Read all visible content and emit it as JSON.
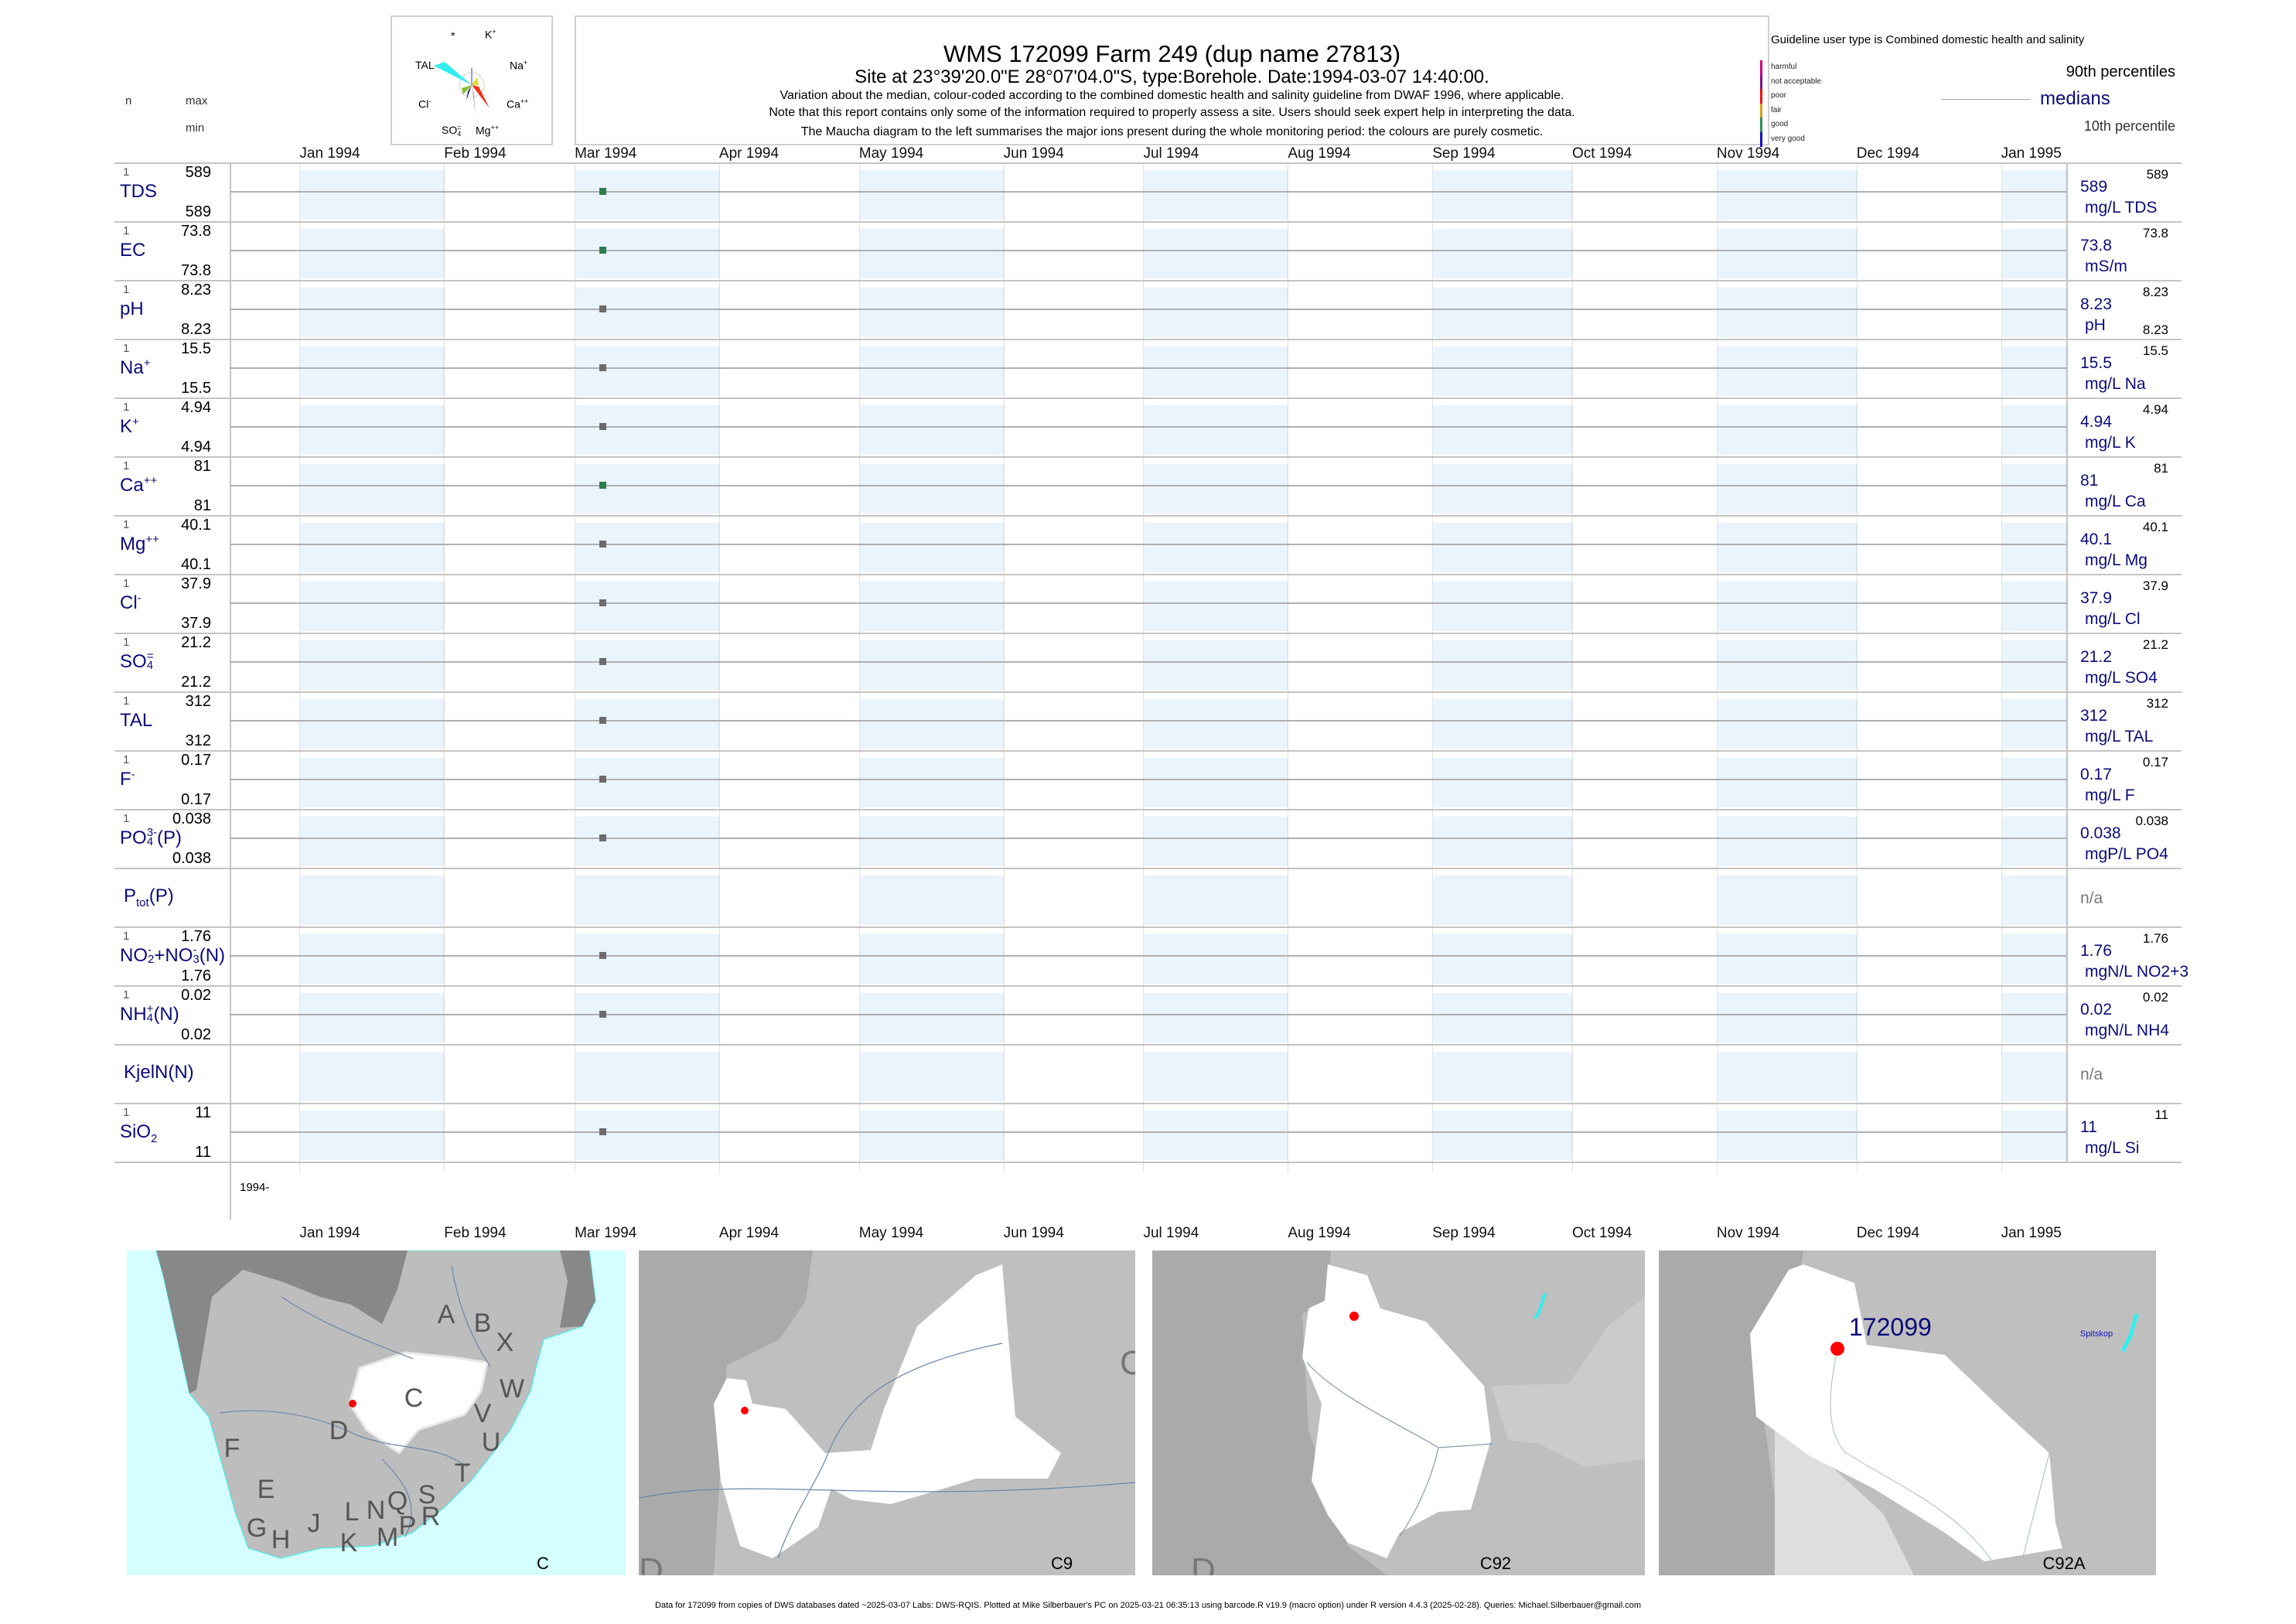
{
  "header": {
    "title": "WMS 172099  Farm 249 (dup name 27813)",
    "site": "Site at 23°39'20.0\"E 28°07'04.0\"S, type:Borehole. Date:1994-03-07 14:40:00.",
    "notes": [
      "Variation about the median,  colour-coded according to the combined domestic health and salinity guideline from DWAF 1996, where applicable.",
      "Note that this report contains only some of the information required to properly assess a site. Users should seek expert help in interpreting the data.",
      "The Maucha diagram to the left summarises the major ions present during the whole monitoring period: the colours are purely cosmetic."
    ]
  },
  "maucha": {
    "star": "*",
    "labels": {
      "k": "K",
      "k_sup": "+",
      "na": "Na",
      "na_sup": "+",
      "ca": "Ca",
      "ca_sup": "++",
      "mg": "Mg",
      "mg_sup": "++",
      "so4": "SO",
      "so4_sub": "4",
      "so4_sup": "=",
      "cl": "Cl",
      "cl_sup": "-",
      "tal": "TAL"
    },
    "colors": {
      "tal": "#33eeee",
      "ca": "#ee3311",
      "mg": "#aaaaaa",
      "cl": "#88bb33",
      "na": "#dddd22",
      "k": "#9999dd",
      "so4": "#222266"
    }
  },
  "col_headers": {
    "n": "n",
    "max": "max",
    "min": "min"
  },
  "legend": {
    "guideline": "Guideline user type is Combined domestic health and salinity",
    "classes": [
      {
        "label": "harmful",
        "color": "#cc0077"
      },
      {
        "label": "not acceptable",
        "color": "#881188"
      },
      {
        "label": "poor",
        "color": "#ee1111"
      },
      {
        "label": "fair",
        "color": "#d4a017"
      },
      {
        "label": "good",
        "color": "#2e8b57"
      },
      {
        "label": "very good",
        "color": "#1111cc"
      }
    ],
    "p90": "90th percentiles",
    "medians": "medians",
    "p10": "10th percentile"
  },
  "chart_data": {
    "type": "scatter",
    "title": "WMS 172099  Farm 249 (dup name 27813)",
    "x_domain": [
      "1993-12-17",
      "1995-01-15"
    ],
    "months": [
      {
        "label": "Jan 1994",
        "date": "1994-01-01",
        "shaded": true
      },
      {
        "label": "Feb 1994",
        "date": "1994-02-01",
        "shaded": false
      },
      {
        "label": "Mar 1994",
        "date": "1994-03-01",
        "shaded": true
      },
      {
        "label": "Apr 1994",
        "date": "1994-04-01",
        "shaded": false
      },
      {
        "label": "May 1994",
        "date": "1994-05-01",
        "shaded": true
      },
      {
        "label": "Jun 1994",
        "date": "1994-06-01",
        "shaded": false
      },
      {
        "label": "Jul 1994",
        "date": "1994-07-01",
        "shaded": true
      },
      {
        "label": "Aug 1994",
        "date": "1994-08-01",
        "shaded": false
      },
      {
        "label": "Sep 1994",
        "date": "1994-09-01",
        "shaded": true
      },
      {
        "label": "Oct 1994",
        "date": "1994-10-01",
        "shaded": false
      },
      {
        "label": "Nov 1994",
        "date": "1994-11-01",
        "shaded": true
      },
      {
        "label": "Dec 1994",
        "date": "1994-12-01",
        "shaded": false
      },
      {
        "label": "Jan 1995",
        "date": "1995-01-01",
        "shaded": true
      }
    ],
    "sample_date": "1994-03-07",
    "year_label": "1994-",
    "na_text": "n/a",
    "rows": [
      {
        "id": "tds",
        "label": [
          {
            "t": "TDS"
          }
        ],
        "n": "1",
        "max": "589",
        "min": "589",
        "median": "589",
        "unit": "mg/L TDS",
        "rmax": "589",
        "value": 589,
        "color": "#2e7d4f"
      },
      {
        "id": "ec",
        "label": [
          {
            "t": "EC"
          }
        ],
        "n": "1",
        "max": "73.8",
        "min": "73.8",
        "median": "73.8",
        "unit": "mS/m",
        "rmax": "73.8",
        "value": 73.8,
        "color": "#2e7d4f"
      },
      {
        "id": "ph",
        "label": [
          {
            "t": "pH"
          }
        ],
        "n": "1",
        "max": "8.23",
        "min": "8.23",
        "median": "8.23",
        "unit": "pH",
        "rmax": "8.23",
        "rmin": "8.23",
        "value": 8.23,
        "color": "#6b6b6b"
      },
      {
        "id": "na",
        "label": [
          {
            "t": "Na"
          },
          {
            "sup": "+"
          }
        ],
        "n": "1",
        "max": "15.5",
        "min": "15.5",
        "median": "15.5",
        "unit": "mg/L Na",
        "rmax": "15.5",
        "value": 15.5,
        "color": "#6b6b6b"
      },
      {
        "id": "k",
        "label": [
          {
            "t": "K"
          },
          {
            "sup": "+"
          }
        ],
        "n": "1",
        "max": "4.94",
        "min": "4.94",
        "median": "4.94",
        "unit": "mg/L K",
        "rmax": "4.94",
        "value": 4.94,
        "color": "#6b6b6b"
      },
      {
        "id": "ca",
        "label": [
          {
            "t": "Ca"
          },
          {
            "sup": "++"
          }
        ],
        "n": "1",
        "max": "81",
        "min": "81",
        "median": "81",
        "unit": "mg/L Ca",
        "rmax": "81",
        "value": 81,
        "color": "#2e7d4f"
      },
      {
        "id": "mg",
        "label": [
          {
            "t": "Mg"
          },
          {
            "sup": "++"
          }
        ],
        "n": "1",
        "max": "40.1",
        "min": "40.1",
        "median": "40.1",
        "unit": "mg/L Mg",
        "rmax": "40.1",
        "value": 40.1,
        "color": "#6b6b6b"
      },
      {
        "id": "cl",
        "label": [
          {
            "t": "Cl"
          },
          {
            "sup": "-"
          }
        ],
        "n": "1",
        "max": "37.9",
        "min": "37.9",
        "median": "37.9",
        "unit": "mg/L Cl",
        "rmax": "37.9",
        "value": 37.9,
        "color": "#6b6b6b"
      },
      {
        "id": "so4",
        "label": [
          {
            "t": "SO"
          },
          {
            "ss": [
              "=",
              "4"
            ]
          }
        ],
        "n": "1",
        "max": "21.2",
        "min": "21.2",
        "median": "21.2",
        "unit": "mg/L SO4",
        "rmax": "21.2",
        "value": 21.2,
        "color": "#6b6b6b"
      },
      {
        "id": "tal",
        "label": [
          {
            "t": "TAL"
          }
        ],
        "n": "1",
        "max": "312",
        "min": "312",
        "median": "312",
        "unit": "mg/L TAL",
        "rmax": "312",
        "value": 312,
        "color": "#6b6b6b"
      },
      {
        "id": "f",
        "label": [
          {
            "t": "F"
          },
          {
            "sup": "-"
          }
        ],
        "n": "1",
        "max": "0.17",
        "min": "0.17",
        "median": "0.17",
        "unit": "mg/L F",
        "rmax": "0.17",
        "value": 0.17,
        "color": "#6b6b6b"
      },
      {
        "id": "po4",
        "label": [
          {
            "t": "PO"
          },
          {
            "ss": [
              "3-",
              "4"
            ]
          },
          {
            "t": "(P)"
          }
        ],
        "n": "1",
        "max": "0.038",
        "min": "0.038",
        "median": "0.038",
        "unit": "mgP/L PO4",
        "rmax": "0.038",
        "value": 0.038,
        "color": "#6b6b6b"
      },
      {
        "id": "ptot",
        "label": [
          {
            "t": "P"
          },
          {
            "sub": "tot"
          },
          {
            "t": "(P)"
          }
        ],
        "empty": true
      },
      {
        "id": "no23",
        "label": [
          {
            "t": "NO"
          },
          {
            "ss": [
              "-",
              "2"
            ]
          },
          {
            "t": "+NO"
          },
          {
            "ss": [
              "-",
              "3"
            ]
          },
          {
            "t": "(N)"
          }
        ],
        "n": "1",
        "max": "1.76",
        "min": "1.76",
        "median": "1.76",
        "unit": "mgN/L NO2+3",
        "rmax": "1.76",
        "value": 1.76,
        "color": "#6b6b6b"
      },
      {
        "id": "nh4",
        "label": [
          {
            "t": "NH"
          },
          {
            "ss": [
              "+",
              "4"
            ]
          },
          {
            "t": "(N)"
          }
        ],
        "n": "1",
        "max": "0.02",
        "min": "0.02",
        "median": "0.02",
        "unit": "mgN/L NH4",
        "rmax": "0.02",
        "value": 0.02,
        "color": "#6b6b6b"
      },
      {
        "id": "kjel",
        "label": [
          {
            "t": "KjelN(N)"
          }
        ],
        "empty": true
      },
      {
        "id": "sio2",
        "label": [
          {
            "t": "SiO"
          },
          {
            "sub": "2"
          }
        ],
        "n": "1",
        "max": "11",
        "min": "11",
        "median": "11",
        "unit": "mg/L Si",
        "rmax": "11",
        "value": 11,
        "color": "#6b6b6b"
      }
    ]
  },
  "maps": {
    "panel1": {
      "caption": "C",
      "letters": [
        "A",
        "B",
        "X",
        "W",
        "C",
        "V",
        "D",
        "U",
        "F",
        "T",
        "E",
        "S",
        "Q",
        "N",
        "L",
        "R",
        "J",
        "P",
        "G",
        "H",
        "K",
        "M"
      ]
    },
    "panel2": {
      "caption": "C9",
      "edge_left": "D",
      "edge_right": "C"
    },
    "panel3": {
      "caption": "C92",
      "edge_left": "D"
    },
    "panel4": {
      "caption": "C92A",
      "site_label": "172099",
      "place": "Spitskop"
    }
  },
  "footer": "Data for 172099 from copies of DWS databases dated ~2025-03-07 Labs: DWS-RQIS. Plotted at Mike Silberbauer's PC on 2025-03-21 06:35:13 using barcode.R v19.9 (macro option) under R version 4.4.3 (2025-02-28). Queries: Michael.Silberbauer@gmail.com"
}
